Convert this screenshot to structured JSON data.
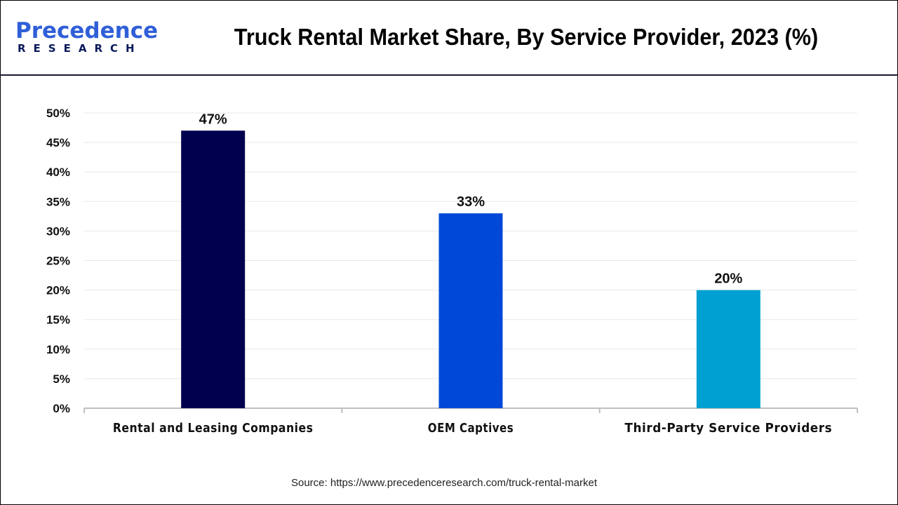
{
  "header": {
    "logo_text_top": "Precedence",
    "logo_text_bottom": "RESEARCH",
    "title": "Truck Rental Market Share, By Service Provider, 2023 (%)"
  },
  "source": "Source: https://www.precedenceresearch.com/truck-rental-market",
  "chart_data": {
    "type": "bar",
    "title": "Truck Rental Market Share, By Service Provider, 2023 (%)",
    "categories": [
      "Rental and Leasing Companies",
      "OEM Captives",
      "Third-Party Service Providers"
    ],
    "values": [
      47,
      33,
      20
    ],
    "data_labels": [
      "47%",
      "33%",
      "20%"
    ],
    "colors": [
      "#00004f",
      "#0049d8",
      "#00a0d2"
    ],
    "ylim": [
      0,
      50
    ],
    "yticks": [
      0,
      5,
      10,
      15,
      20,
      25,
      30,
      35,
      40,
      45,
      50
    ],
    "ytick_labels": [
      "0%",
      "5%",
      "10%",
      "15%",
      "20%",
      "25%",
      "30%",
      "35%",
      "40%",
      "45%",
      "50%"
    ],
    "grid": true,
    "xlabel": "",
    "ylabel": ""
  }
}
